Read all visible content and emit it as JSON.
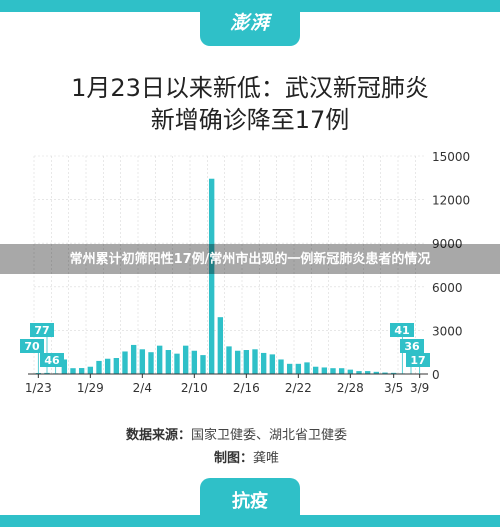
{
  "header": {
    "logo": "澎湃"
  },
  "title": {
    "line1": "1月23日以来新低：武汉新冠肺炎",
    "line2": "新增确诊降至17例"
  },
  "overlay": {
    "text": "常州累计初筛阳性17例/常州市出现的一例新冠肺炎患者的情况"
  },
  "footer": {
    "source_label": "数据来源：",
    "source_value": "国家卫健委、湖北省卫健委",
    "credit_label": "制图：",
    "credit_value": "龚唯",
    "tag": "抗疫"
  },
  "colors": {
    "accent": "#2fc0c8",
    "bar": "#2fc0c8",
    "grid": "#d9d9d9",
    "text": "#222222"
  },
  "chart_data": {
    "type": "bar",
    "x_tick_labels": [
      "1/23",
      "1/29",
      "2/4",
      "2/10",
      "2/16",
      "2/22",
      "2/28",
      "3/5",
      "3/9"
    ],
    "values": [
      70,
      77,
      46,
      1000,
      400,
      410,
      500,
      900,
      1050,
      1100,
      1550,
      2000,
      1700,
      1500,
      1950,
      1650,
      1400,
      1950,
      1600,
      1300,
      13436,
      3910,
      1900,
      1600,
      1650,
      1700,
      1450,
      1350,
      1000,
      700,
      700,
      800,
      500,
      450,
      400,
      400,
      300,
      200,
      200,
      150,
      100,
      80,
      41,
      36,
      17
    ],
    "yticks": [
      0,
      3000,
      6000,
      9000,
      12000,
      15000
    ],
    "ylim": [
      0,
      15000
    ],
    "annotations": [
      {
        "label": "77",
        "bar_index": 1
      },
      {
        "label": "70",
        "bar_index": 0
      },
      {
        "label": "46",
        "bar_index": 2
      },
      {
        "label": "41",
        "bar_index": 42
      },
      {
        "label": "36",
        "bar_index": 43
      },
      {
        "label": "17",
        "bar_index": 44
      }
    ]
  }
}
